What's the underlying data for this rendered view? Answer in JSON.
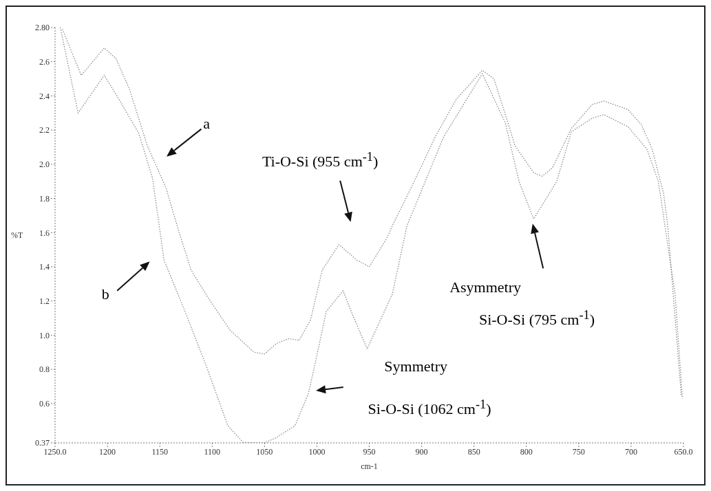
{
  "chart_data": {
    "type": "line",
    "xlabel": "cm-1",
    "ylabel": "%T",
    "xlim": [
      1250,
      650
    ],
    "xticks": [
      {
        "value": 1250,
        "label": "1250.0"
      },
      1200,
      1150,
      1100,
      1050,
      1000,
      950,
      900,
      850,
      800,
      750,
      700,
      {
        "value": 650,
        "label": "650.0"
      }
    ],
    "ylim": [
      0.37,
      2.8
    ],
    "yticks": [
      0.37,
      0.6,
      0.8,
      {
        "value": 1,
        "label": "1.0"
      },
      1.2,
      1.4,
      1.6,
      1.8,
      {
        "value": 2,
        "label": "2.0"
      },
      2.2,
      2.4,
      2.6,
      {
        "value": 2.8,
        "label": "2.80"
      }
    ],
    "line_style": "dotted",
    "marker": "none",
    "grid": false,
    "legend": false,
    "series": [
      {
        "color": "#8a8a8a",
        "x": [
          1243,
          1225,
          1203,
          1192,
          1179,
          1162,
          1144,
          1131,
          1120,
          1104,
          1083,
          1060,
          1050,
          1039,
          1027,
          1017,
          1006,
          995,
          979,
          962,
          950,
          933,
          928,
          907,
          887,
          867,
          842,
          831,
          820,
          811,
          793,
          785,
          775,
          757,
          737,
          726,
          703,
          690,
          680,
          669,
          665,
          658,
          652
        ],
        "values": [
          2.79,
          2.52,
          2.68,
          2.62,
          2.44,
          2.11,
          1.86,
          1.59,
          1.38,
          1.22,
          1.03,
          0.9,
          0.89,
          0.95,
          0.98,
          0.97,
          1.09,
          1.38,
          1.53,
          1.44,
          1.4,
          1.57,
          1.64,
          1.9,
          2.16,
          2.38,
          2.55,
          2.5,
          2.29,
          2.11,
          1.95,
          1.93,
          1.98,
          2.21,
          2.35,
          2.37,
          2.32,
          2.23,
          2.09,
          1.83,
          1.64,
          1.1,
          0.64
        ]
      },
      {
        "color": "#8a8a8a",
        "x": [
          1245,
          1228,
          1203,
          1188,
          1170,
          1157,
          1151,
          1146,
          1126,
          1105,
          1085,
          1070,
          1050,
          1039,
          1021,
          1008,
          999,
          991,
          975,
          966,
          952,
          928,
          914,
          879,
          842,
          820,
          807,
          793,
          771,
          757,
          737,
          726,
          703,
          685,
          674,
          658,
          651
        ],
        "values": [
          2.8,
          2.3,
          2.52,
          2.37,
          2.18,
          1.92,
          1.66,
          1.44,
          1.14,
          0.81,
          0.47,
          0.37,
          0.37,
          0.4,
          0.47,
          0.66,
          0.91,
          1.14,
          1.26,
          1.12,
          0.92,
          1.24,
          1.64,
          2.16,
          2.53,
          2.24,
          1.9,
          1.68,
          1.9,
          2.19,
          2.27,
          2.29,
          2.22,
          2.09,
          1.9,
          1.24,
          0.63
        ]
      }
    ],
    "annotations": [
      "a",
      "b",
      "Ti-O-Si (955 cm$^{-1}$)",
      "Asymmetry",
      "Si-O-Si (795 cm$^{-1}$)",
      "Symmetry",
      "Si-O-Si (1062 cm$^{-1}$)"
    ]
  }
}
